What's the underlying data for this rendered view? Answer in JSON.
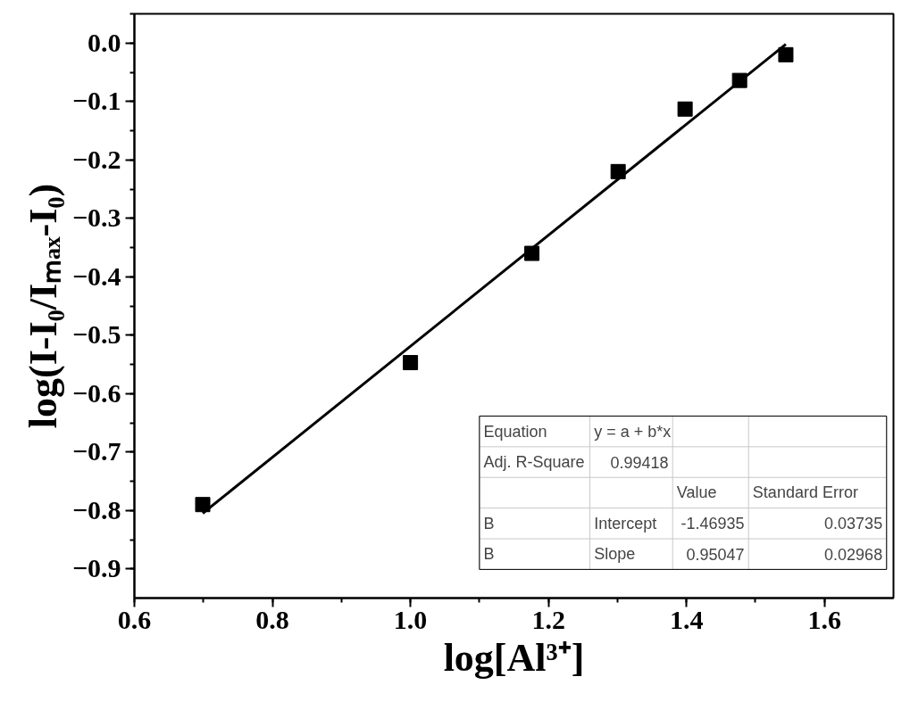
{
  "chart_data": {
    "type": "scatter",
    "xlabel": "log[Al³⁺]",
    "ylabel": "log(I-I₀/Iₘₐₓ-I₀)",
    "x": [
      0.699,
      1.0,
      1.176,
      1.301,
      1.398,
      1.477,
      1.544
    ],
    "series": [
      {
        "color": "#000000",
        "marker": "square",
        "values": [
          -0.79,
          -0.547,
          -0.36,
          -0.22,
          -0.113,
          -0.064,
          -0.02
        ]
      },
      {
        "type": "line",
        "color": "#000000",
        "line_style": "solid",
        "x": [
          0.699,
          1.544
        ],
        "values": [
          -0.805,
          -0.002
        ]
      }
    ],
    "xlim": [
      0.6,
      1.7
    ],
    "ylim": [
      -0.95,
      0.05
    ],
    "xticks": [
      0.6,
      0.8,
      {
        "value": 1.0,
        "label": "1.0"
      },
      1.2,
      1.4,
      1.6
    ],
    "yticks": [
      {
        "value": 0.0,
        "label": "0.0"
      },
      -0.1,
      -0.2,
      -0.3,
      -0.4,
      -0.5,
      -0.6,
      -0.7,
      -0.8,
      -0.9
    ],
    "grid": false,
    "annotations": [
      "Equation",
      "y = a + b*x",
      "Adj. R-Square",
      "0.99418",
      "Value",
      "Standard Error",
      "B",
      "Intercept",
      "-1.46935",
      "0.03735",
      "B",
      "Slope",
      "0.95047",
      "0.02968"
    ]
  }
}
